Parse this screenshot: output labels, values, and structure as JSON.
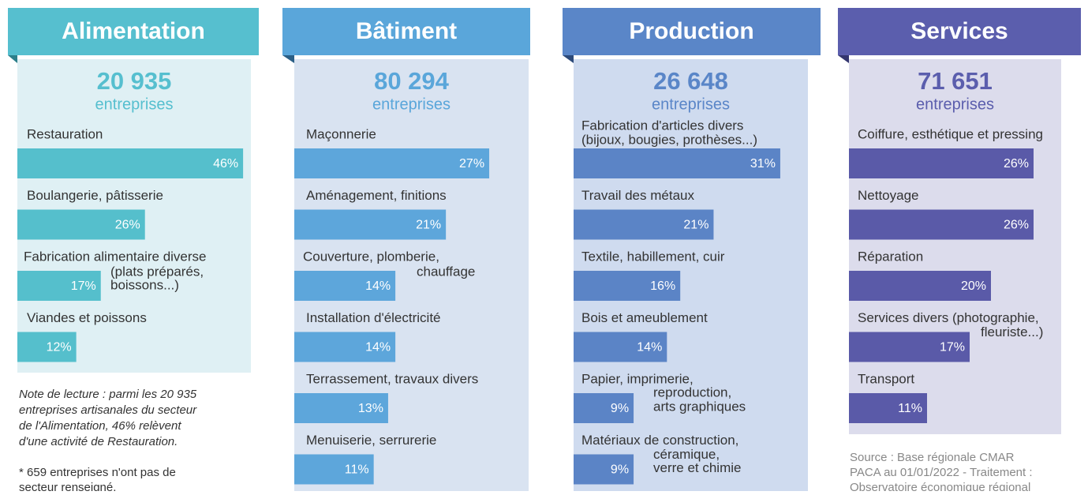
{
  "panels": [
    {
      "title": "Alimentation",
      "count": "20 935",
      "unit": "entreprises",
      "items": [
        {
          "label": [
            "Restauration"
          ],
          "value": 46,
          "value_label": "46%"
        },
        {
          "label": [
            "Boulangerie, pâtisserie"
          ],
          "value": 26,
          "value_label": "26%"
        },
        {
          "label": [
            "Fabrication alimentaire diverse",
            "(plats préparés,",
            "boissons...)"
          ],
          "value": 17,
          "value_label": "17%"
        },
        {
          "label": [
            "Viandes et poissons"
          ],
          "value": 12,
          "value_label": "12%"
        }
      ]
    },
    {
      "title": "Bâtiment",
      "count": "80 294",
      "unit": "entreprises",
      "items": [
        {
          "label": [
            "Maçonnerie"
          ],
          "value": 27,
          "value_label": "27%"
        },
        {
          "label": [
            "Aménagement, finitions"
          ],
          "value": 21,
          "value_label": "21%"
        },
        {
          "label": [
            "Couverture, plomberie,",
            "chauffage"
          ],
          "value": 14,
          "value_label": "14%"
        },
        {
          "label": [
            "Installation d'électricité"
          ],
          "value": 14,
          "value_label": "14%"
        },
        {
          "label": [
            "Terrassement, travaux divers"
          ],
          "value": 13,
          "value_label": "13%"
        },
        {
          "label": [
            "Menuiserie, serrurerie"
          ],
          "value": 11,
          "value_label": "11%"
        }
      ]
    },
    {
      "title": "Production",
      "count": "26 648",
      "unit": "entreprises",
      "items": [
        {
          "label": [
            "Fabrication d'articles divers",
            "(bijoux, bougies, prothèses...)"
          ],
          "value": 31,
          "value_label": "31%"
        },
        {
          "label": [
            "Travail des métaux"
          ],
          "value": 21,
          "value_label": "21%"
        },
        {
          "label": [
            "Textile, habillement, cuir"
          ],
          "value": 16,
          "value_label": "16%"
        },
        {
          "label": [
            "Bois et ameublement"
          ],
          "value": 14,
          "value_label": "14%"
        },
        {
          "label": [
            "Papier, imprimerie,",
            "reproduction,",
            "arts graphiques"
          ],
          "value": 9,
          "value_label": "9%"
        },
        {
          "label": [
            "Matériaux de construction,",
            "céramique,",
            "verre et chimie"
          ],
          "value": 9,
          "value_label": "9%"
        }
      ]
    },
    {
      "title": "Services",
      "count": "71 651",
      "unit": "entreprises",
      "items": [
        {
          "label": [
            "Coiffure, esthétique et pressing"
          ],
          "value": 26,
          "value_label": "26%"
        },
        {
          "label": [
            "Nettoyage"
          ],
          "value": 26,
          "value_label": "26%"
        },
        {
          "label": [
            "Réparation"
          ],
          "value": 20,
          "value_label": "20%"
        },
        {
          "label": [
            "Services divers (photographie,",
            "fleuriste...)"
          ],
          "value": 17,
          "value_label": "17%"
        },
        {
          "label": [
            "Transport"
          ],
          "value": 11,
          "value_label": "11%"
        }
      ]
    }
  ],
  "note": [
    "Note de lecture : parmi les 20 935",
    "entreprises artisanales du secteur",
    "de l'Alimentation, 46% relèvent",
    "d'une activité de Restauration."
  ],
  "footnote": [
    "* 659 entreprises n'ont pas de",
    "secteur renseigné."
  ],
  "source": [
    "Source : Base régionale CMAR",
    "PACA au 01/01/2022 - Traitement :",
    "Observatoire économique régional"
  ]
}
